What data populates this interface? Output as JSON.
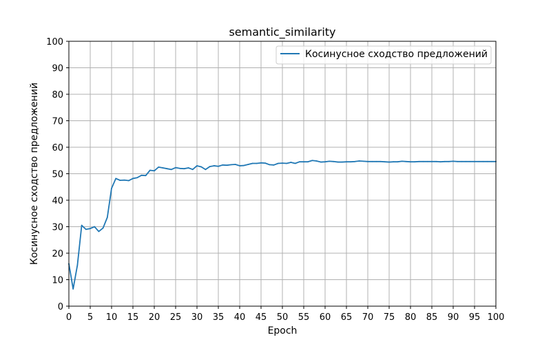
{
  "chart_data": {
    "type": "line",
    "title": "semantic_similarity",
    "xlabel": "Epoch",
    "ylabel": "Косинусное сходство предложений",
    "xlim": [
      0,
      100
    ],
    "ylim": [
      0,
      100
    ],
    "xticks": [
      0,
      5,
      10,
      15,
      20,
      25,
      30,
      35,
      40,
      45,
      50,
      55,
      60,
      65,
      70,
      75,
      80,
      85,
      90,
      95,
      100
    ],
    "yticks": [
      0,
      10,
      20,
      30,
      40,
      50,
      60,
      70,
      80,
      90,
      100
    ],
    "grid": true,
    "legend_position": "top-right",
    "series": [
      {
        "name": "Косинусное сходство предложений",
        "color": "#1f77b4",
        "x": [
          0,
          1,
          2,
          3,
          4,
          5,
          6,
          7,
          8,
          9,
          10,
          11,
          12,
          13,
          14,
          15,
          16,
          17,
          18,
          19,
          20,
          21,
          22,
          23,
          24,
          25,
          26,
          27,
          28,
          29,
          30,
          31,
          32,
          33,
          34,
          35,
          36,
          37,
          38,
          39,
          40,
          41,
          42,
          43,
          44,
          45,
          46,
          47,
          48,
          49,
          50,
          51,
          52,
          53,
          54,
          55,
          56,
          57,
          58,
          59,
          60,
          61,
          62,
          63,
          64,
          65,
          66,
          67,
          68,
          69,
          70,
          71,
          72,
          73,
          74,
          75,
          76,
          77,
          78,
          79,
          80,
          81,
          82,
          83,
          84,
          85,
          86,
          87,
          88,
          89,
          90,
          91,
          92,
          93,
          94,
          95,
          96,
          97,
          98,
          99,
          100
        ],
        "values": [
          16.0,
          6.5,
          15.5,
          30.5,
          29.0,
          29.3,
          30.0,
          28.2,
          29.5,
          33.5,
          44.5,
          48.2,
          47.5,
          47.6,
          47.4,
          48.2,
          48.5,
          49.4,
          49.3,
          51.3,
          51.1,
          52.5,
          52.2,
          51.9,
          51.6,
          52.3,
          52.0,
          51.9,
          52.2,
          51.6,
          53.0,
          52.6,
          51.6,
          52.7,
          53.0,
          52.8,
          53.3,
          53.2,
          53.4,
          53.5,
          53.0,
          53.1,
          53.5,
          53.9,
          53.9,
          54.1,
          54.0,
          53.4,
          53.3,
          53.9,
          54.0,
          53.9,
          54.3,
          53.9,
          54.5,
          54.5,
          54.5,
          55.0,
          54.8,
          54.4,
          54.5,
          54.7,
          54.6,
          54.4,
          54.4,
          54.5,
          54.5,
          54.6,
          54.8,
          54.7,
          54.6,
          54.6,
          54.6,
          54.6,
          54.5,
          54.4,
          54.5,
          54.5,
          54.7,
          54.6,
          54.5,
          54.5,
          54.6,
          54.6,
          54.6,
          54.6,
          54.6,
          54.5,
          54.6,
          54.6,
          54.7,
          54.6,
          54.6,
          54.6,
          54.6,
          54.6,
          54.6,
          54.6,
          54.6,
          54.6,
          54.6
        ]
      }
    ]
  }
}
